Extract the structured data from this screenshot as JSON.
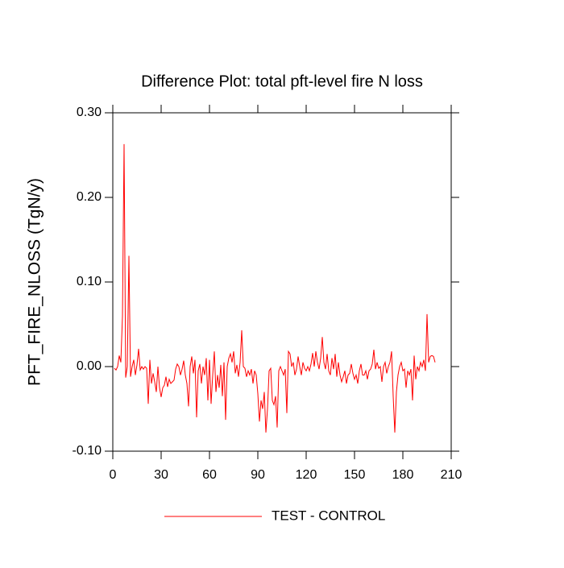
{
  "chart_data": {
    "type": "line",
    "title": "Difference Plot: total pft-level fire N loss",
    "y_label": "PFT_FIRE_NLOSS  (TgN/y)",
    "x": [
      1,
      2,
      3,
      4,
      5,
      6,
      7,
      8,
      9,
      10,
      11,
      12,
      13,
      14,
      15,
      16,
      17,
      18,
      19,
      20,
      21,
      22,
      23,
      24,
      25,
      26,
      27,
      28,
      29,
      30,
      31,
      32,
      33,
      34,
      35,
      36,
      37,
      38,
      39,
      40,
      41,
      42,
      43,
      44,
      45,
      46,
      47,
      48,
      49,
      50,
      51,
      52,
      53,
      54,
      55,
      56,
      57,
      58,
      59,
      60,
      61,
      62,
      63,
      64,
      65,
      66,
      67,
      68,
      69,
      70,
      71,
      72,
      73,
      74,
      75,
      76,
      77,
      78,
      79,
      80,
      81,
      82,
      83,
      84,
      85,
      86,
      87,
      88,
      89,
      90,
      91,
      92,
      93,
      94,
      95,
      96,
      97,
      98,
      99,
      100,
      101,
      102,
      103,
      104,
      105,
      106,
      107,
      108,
      109,
      110,
      111,
      112,
      113,
      114,
      115,
      116,
      117,
      118,
      119,
      120,
      121,
      122,
      123,
      124,
      125,
      126,
      127,
      128,
      129,
      130,
      131,
      132,
      133,
      134,
      135,
      136,
      137,
      138,
      139,
      140,
      141,
      142,
      143,
      144,
      145,
      146,
      147,
      148,
      149,
      150,
      151,
      152,
      153,
      154,
      155,
      156,
      157,
      158,
      159,
      160,
      161,
      162,
      163,
      164,
      165,
      166,
      167,
      168,
      169,
      170,
      171,
      172,
      173,
      174,
      175,
      176,
      177,
      178,
      179,
      180,
      181,
      182,
      183,
      184,
      185,
      186,
      187,
      188,
      189,
      190,
      191,
      192,
      193,
      194,
      195,
      196,
      197,
      198,
      199,
      200
    ],
    "series": [
      {
        "name": "TEST - CONTROL",
        "color": "#ff0000",
        "values": [
          -0.002,
          -0.004,
          0.0,
          0.013,
          0.005,
          0.06,
          0.263,
          -0.013,
          0.0,
          0.131,
          -0.012,
          0.0,
          0.008,
          -0.01,
          0.002,
          0.021,
          -0.004,
          0.0,
          -0.003,
          0.0,
          -0.002,
          -0.044,
          0.008,
          -0.02,
          -0.008,
          -0.018,
          -0.03,
          0.0,
          -0.025,
          -0.036,
          -0.025,
          -0.022,
          -0.012,
          -0.024,
          -0.015,
          -0.02,
          -0.018,
          -0.016,
          -0.003,
          0.003,
          0.0,
          -0.01,
          -0.003,
          0.007,
          -0.01,
          -0.02,
          -0.047,
          0.0,
          0.012,
          -0.008,
          0.008,
          -0.06,
          -0.005,
          0.003,
          -0.02,
          0.0,
          -0.01,
          0.01,
          -0.04,
          0.008,
          -0.044,
          -0.01,
          0.018,
          -0.03,
          -0.01,
          -0.025,
          0.002,
          -0.035,
          0.005,
          -0.063,
          0.0,
          0.01,
          0.015,
          0.005,
          0.018,
          -0.008,
          0.002,
          -0.012,
          0.005,
          0.043,
          0.0,
          -0.002,
          -0.012,
          -0.005,
          -0.01,
          -0.003,
          -0.02,
          -0.005,
          -0.01,
          -0.032,
          -0.065,
          -0.04,
          -0.05,
          -0.03,
          -0.078,
          -0.05,
          -0.005,
          -0.002,
          -0.04,
          -0.045,
          -0.035,
          -0.072,
          -0.005,
          0.0,
          -0.005,
          -0.01,
          -0.003,
          -0.055,
          0.018,
          0.015,
          0.0,
          0.005,
          -0.01,
          -0.003,
          0.012,
          0.0,
          -0.01,
          0.005,
          -0.002,
          -0.005,
          0.0,
          -0.005,
          0.003,
          0.016,
          0.0,
          0.018,
          0.005,
          -0.003,
          0.01,
          0.035,
          0.005,
          -0.003,
          0.015,
          -0.005,
          -0.01,
          0.01,
          -0.003,
          0.015,
          -0.012,
          0.005,
          -0.01,
          -0.018,
          -0.012,
          -0.005,
          -0.02,
          -0.01,
          -0.008,
          0.003,
          -0.008,
          -0.015,
          -0.01,
          -0.02,
          -0.005,
          0.003,
          -0.01,
          -0.01,
          -0.005,
          -0.015,
          -0.005,
          -0.003,
          0.003,
          0.02,
          -0.003,
          0.005,
          -0.002,
          0.0,
          -0.018,
          0.0,
          0.005,
          -0.008,
          0.0,
          0.005,
          0.018,
          -0.035,
          -0.078,
          -0.03,
          -0.01,
          0.0,
          0.005,
          -0.005,
          -0.003,
          -0.025,
          -0.005,
          -0.01,
          -0.003,
          -0.04,
          0.013,
          -0.015,
          0.0,
          -0.005,
          0.005,
          0.0,
          0.008,
          -0.005,
          0.062,
          0.005,
          0.012,
          0.013,
          0.012,
          0.005
        ]
      }
    ],
    "xlim": [
      0,
      210
    ],
    "xticks": [
      0,
      30,
      60,
      90,
      120,
      150,
      180,
      210
    ],
    "ylim": [
      -0.1,
      0.3
    ],
    "yticks": [
      {
        "value": -0.1,
        "label": "-0.10"
      },
      {
        "value": 0,
        "label": "0.00"
      },
      {
        "value": 0.1,
        "label": "0.10"
      },
      {
        "value": 0.2,
        "label": "0.20"
      },
      {
        "value": 0.3,
        "label": "0.30"
      }
    ],
    "grid": false
  }
}
